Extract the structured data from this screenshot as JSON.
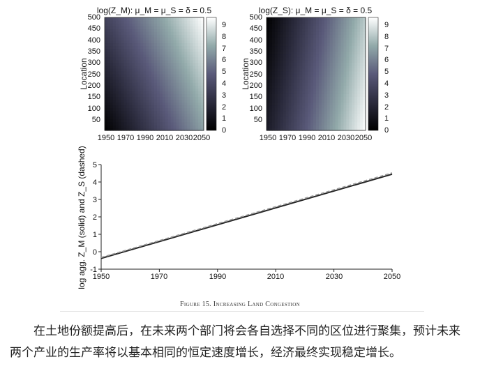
{
  "figure": {
    "caption": "Figure 15. Increasing Land Congestion",
    "heatmaps": [
      {
        "title": "log(Z_M): μ_M = μ_S = δ = 0.5",
        "ylabel": "Location",
        "y_ticks": [
          "50",
          "100",
          "150",
          "200",
          "250",
          "300",
          "350",
          "400",
          "450",
          "500"
        ],
        "x_ticks": [
          "1950",
          "1970",
          "1990",
          "2010",
          "2030",
          "2050"
        ],
        "colorbar_ticks": [
          "0",
          "1",
          "2",
          "3",
          "4",
          "5",
          "6",
          "7",
          "8",
          "9"
        ]
      },
      {
        "title": "log(Z_S): μ_M = μ_S = δ = 0.5",
        "ylabel": "Location",
        "y_ticks": [
          "50",
          "100",
          "150",
          "200",
          "250",
          "300",
          "350",
          "400",
          "450",
          "500"
        ],
        "x_ticks": [
          "1950",
          "1970",
          "1990",
          "2010",
          "2030",
          "2050"
        ],
        "colorbar_ticks": [
          "0",
          "1",
          "2",
          "3",
          "4",
          "5",
          "6",
          "7",
          "8",
          "9"
        ]
      }
    ],
    "line_plot": {
      "ylabel": "log agg. Z_M (solid) and Z_S (dashed)",
      "x_ticks": [
        "1950",
        "1970",
        "1990",
        "2010",
        "2030",
        "2050"
      ],
      "y_ticks": [
        "-1",
        "0",
        "1",
        "2",
        "3",
        "4",
        "5"
      ]
    }
  },
  "chart_data": [
    {
      "type": "heatmap",
      "title": "log(Z_M): μ_M = μ_S = δ = 0.5",
      "xlabel": "",
      "ylabel": "Location",
      "xlim": [
        1950,
        2050
      ],
      "ylim": [
        1,
        500
      ],
      "zlim": [
        0,
        9.5
      ],
      "colormap": "bone",
      "corner_values": {
        "x1950_y1": 0,
        "x1950_y500": 3.5,
        "x2050_y1": 6.8,
        "x2050_y500": 9.5
      }
    },
    {
      "type": "heatmap",
      "title": "log(Z_S): μ_M = μ_S = δ = 0.5",
      "xlabel": "",
      "ylabel": "Location",
      "xlim": [
        1950,
        2050
      ],
      "ylim": [
        1,
        500
      ],
      "zlim": [
        0,
        9.5
      ],
      "colormap": "bone",
      "corner_values": {
        "x1950_y1": 1.5,
        "x1950_y500": 0,
        "x2050_y1": 9.5,
        "x2050_y500": 8.0
      }
    },
    {
      "type": "line",
      "xlabel": "",
      "ylabel": "log agg. Z_M (solid) and Z_S (dashed)",
      "xlim": [
        1950,
        2050
      ],
      "ylim": [
        -1,
        5
      ],
      "grid": false,
      "series": [
        {
          "name": "Z_M (solid)",
          "color": "#222222",
          "x": [
            1950,
            2050
          ],
          "values": [
            -0.38,
            4.45
          ]
        },
        {
          "name": "Z_S (dashed)",
          "color": "#9a9a9a",
          "x": [
            1950,
            2050
          ],
          "values": [
            -0.33,
            4.52
          ]
        }
      ]
    }
  ],
  "body_text": "在土地份额提高后，在未来两个部门将会各自选择不同的区位进行聚集，预计未来两个产业的生产率将以基本相同的恒定速度增长，经济最终实现稳定增长。"
}
